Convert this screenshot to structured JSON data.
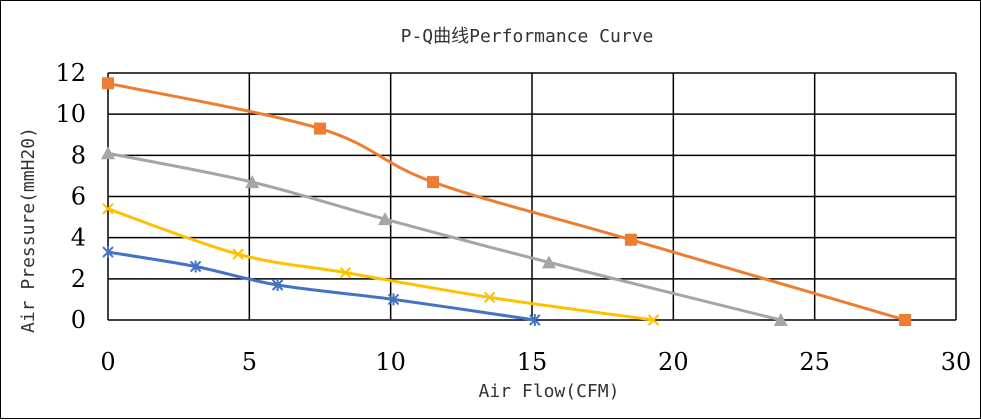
{
  "chart_data": {
    "type": "line",
    "title": "P-Q曲线Performance Curve",
    "xlabel": "Air Flow(CFM)",
    "ylabel": "Air Pressure(mmH20)",
    "xlim": [
      0,
      30
    ],
    "ylim": [
      0,
      12
    ],
    "xticks": [
      0,
      5,
      10,
      15,
      20,
      25,
      30
    ],
    "yticks": [
      0,
      2,
      4,
      6,
      8,
      10,
      12
    ],
    "grid": true,
    "legend": "none",
    "series": [
      {
        "color": "#ED7D31",
        "marker": "square",
        "points": [
          [
            0,
            11.5
          ],
          [
            7.5,
            9.3
          ],
          [
            11.5,
            6.7
          ],
          [
            18.5,
            3.9
          ],
          [
            28.2,
            0
          ]
        ]
      },
      {
        "color": "#A5A5A5",
        "marker": "triangle",
        "points": [
          [
            0,
            8.1
          ],
          [
            5.1,
            6.7
          ],
          [
            9.8,
            4.9
          ],
          [
            15.6,
            2.8
          ],
          [
            23.8,
            0
          ]
        ]
      },
      {
        "color": "#FFC000",
        "marker": "x",
        "points": [
          [
            0,
            5.4
          ],
          [
            4.6,
            3.2
          ],
          [
            8.4,
            2.3
          ],
          [
            13.5,
            1.1
          ],
          [
            19.3,
            0
          ]
        ]
      },
      {
        "color": "#4472C4",
        "marker": "star",
        "points": [
          [
            0,
            3.3
          ],
          [
            3.1,
            2.6
          ],
          [
            6.0,
            1.7
          ],
          [
            10.1,
            1.0
          ],
          [
            15.1,
            0
          ]
        ]
      }
    ]
  }
}
